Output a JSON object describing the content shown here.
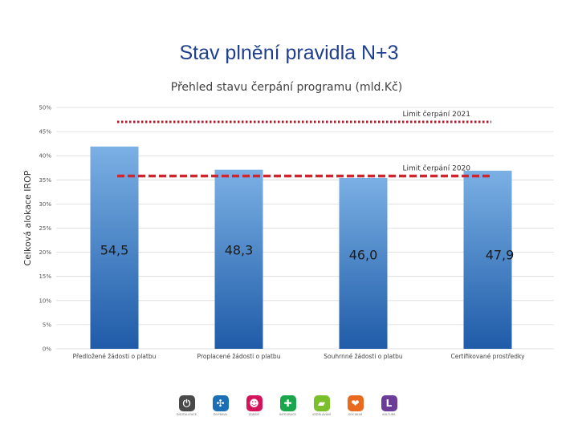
{
  "slide": {
    "title": "Stav plnění pravidla N+3"
  },
  "chart_data": {
    "type": "bar",
    "title": "Přehled stavu čerpání programu (mld.Kč)",
    "xlabel": "",
    "ylabel": "Celková alokace IROP",
    "ylim": [
      0,
      50
    ],
    "ytick_values": [
      0,
      5,
      10,
      15,
      20,
      25,
      30,
      35,
      40,
      45,
      50
    ],
    "ytick_labels": [
      "0%",
      "5%",
      "10%",
      "15%",
      "20%",
      "25%",
      "30%",
      "35%",
      "40%",
      "45%",
      "50%"
    ],
    "grid": true,
    "categories": [
      "Předložené žádosti o platbu",
      "Proplacené žádosti o platbu",
      "Souhrnné žádosti o platbu",
      "Certifikované prostředky"
    ],
    "values": [
      41.9,
      37.1,
      35.4,
      36.9
    ],
    "data_labels": [
      "54,5",
      "48,3",
      "46,0",
      "47,9"
    ],
    "reference_lines": [
      {
        "label": "Limit čerpání 2021",
        "value": 47,
        "style": "dotted",
        "color": "#b01c2e"
      },
      {
        "label": "Limit čerpání 2020",
        "value": 35.8,
        "style": "dashed",
        "color": "#d0242f"
      }
    ],
    "bar_color_top": "#7ab0e4",
    "bar_color_bottom": "#1f5ba8"
  },
  "logos": [
    {
      "icon": "power-icon",
      "glyph": "⏻",
      "caption": "DIGITALIZACE",
      "color": "#4a4a4a"
    },
    {
      "icon": "network-icon",
      "glyph": "✣",
      "caption": "DOPRAVA",
      "color": "#1c6fb5"
    },
    {
      "icon": "person-icon",
      "glyph": "☻",
      "caption": "ZDRAVÍ",
      "color": "#d4145a"
    },
    {
      "icon": "plus-icon",
      "glyph": "✚",
      "caption": "INTEGRACE",
      "color": "#1aa64a"
    },
    {
      "icon": "book-icon",
      "glyph": "▰",
      "caption": "VZDĚLÁVÁNÍ",
      "color": "#7bbf2a"
    },
    {
      "icon": "heart-icon",
      "glyph": "❤",
      "caption": "SOCIÁLNÍ",
      "color": "#e96a1e"
    },
    {
      "icon": "letter-l-icon",
      "glyph": "L",
      "caption": "KULTURA",
      "color": "#6b3d99"
    }
  ]
}
